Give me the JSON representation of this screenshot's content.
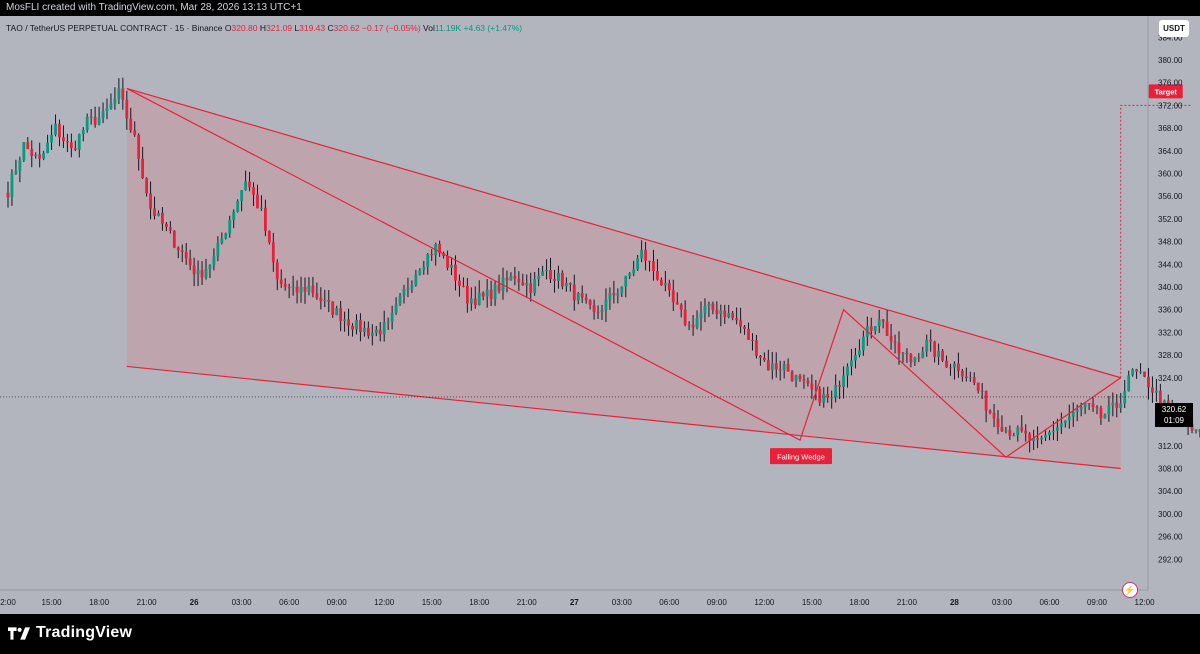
{
  "header": {
    "credit": "MosFLI created with TradingView.com, Mar 28, 2026 13:13 UTC+1"
  },
  "legend": {
    "symbol": "TAO / TetherUS PERPETUAL CONTRACT · 15 · Binance",
    "o_label": "O",
    "o": "320.80",
    "h_label": "H",
    "h": "321.09",
    "l_label": "L",
    "l": "319.43",
    "c_label": "C",
    "c": "320.62",
    "change": "−0.17 (−0.05%)",
    "vol_label": "Vol",
    "vol": "11.19K",
    "vol_change": "+4.63 (+1.47%)"
  },
  "currency_button": "USDT",
  "last_price": {
    "value": "320.62",
    "countdown": "01:09"
  },
  "brand": "TradingView",
  "chart_data": {
    "type": "candlestick",
    "instrument": "TAO / TetherUS PERPETUAL CONTRACT",
    "interval": "15",
    "exchange": "Binance",
    "ylim": [
      288,
      386
    ],
    "y_ticks": [
      "384.00",
      "380.00",
      "376.00",
      "372.00",
      "368.00",
      "364.00",
      "360.00",
      "356.00",
      "352.00",
      "348.00",
      "344.00",
      "340.00",
      "336.00",
      "332.00",
      "328.00",
      "324.00",
      "316.00",
      "312.00",
      "308.00",
      "304.00",
      "300.00",
      "296.00",
      "292.00"
    ],
    "y_tick_values": [
      384,
      380,
      376,
      372,
      368,
      364,
      360,
      356,
      352,
      348,
      344,
      340,
      336,
      332,
      328,
      324,
      316,
      312,
      308,
      304,
      300,
      296,
      292
    ],
    "x_ticks": [
      "2:00",
      "15:00",
      "18:00",
      "21:00",
      "26",
      "03:00",
      "06:00",
      "09:00",
      "12:00",
      "15:00",
      "18:00",
      "21:00",
      "27",
      "03:00",
      "06:00",
      "09:00",
      "12:00",
      "15:00",
      "18:00",
      "21:00",
      "28",
      "03:00",
      "06:00",
      "09:00",
      "12:00"
    ],
    "x_tick_index": [
      0,
      11,
      23,
      35,
      47,
      59,
      71,
      83,
      95,
      107,
      119,
      131,
      143,
      155,
      167,
      179,
      191,
      203,
      215,
      227,
      239,
      251,
      263,
      275,
      287
    ],
    "x_tick_bold": [
      false,
      false,
      false,
      false,
      true,
      false,
      false,
      false,
      false,
      false,
      false,
      false,
      true,
      false,
      false,
      false,
      false,
      false,
      false,
      false,
      true,
      false,
      false,
      false,
      false
    ],
    "close_path": [
      [
        0,
        357
      ],
      [
        4,
        365
      ],
      [
        8,
        362
      ],
      [
        12,
        368
      ],
      [
        16,
        364
      ],
      [
        20,
        369
      ],
      [
        24,
        370
      ],
      [
        28,
        374
      ],
      [
        32,
        366
      ],
      [
        36,
        354
      ],
      [
        40,
        350
      ],
      [
        44,
        346
      ],
      [
        48,
        342
      ],
      [
        52,
        345
      ],
      [
        56,
        352
      ],
      [
        60,
        359
      ],
      [
        64,
        353
      ],
      [
        68,
        341
      ],
      [
        72,
        339
      ],
      [
        76,
        340
      ],
      [
        80,
        337
      ],
      [
        84,
        335
      ],
      [
        88,
        333
      ],
      [
        92,
        332
      ],
      [
        96,
        333
      ],
      [
        100,
        339
      ],
      [
        104,
        344
      ],
      [
        108,
        347
      ],
      [
        112,
        343
      ],
      [
        116,
        338
      ],
      [
        120,
        338
      ],
      [
        124,
        340
      ],
      [
        128,
        342
      ],
      [
        132,
        340
      ],
      [
        136,
        343
      ],
      [
        140,
        341
      ],
      [
        144,
        338
      ],
      [
        148,
        335
      ],
      [
        152,
        338
      ],
      [
        156,
        341
      ],
      [
        160,
        346
      ],
      [
        164,
        342
      ],
      [
        168,
        337
      ],
      [
        172,
        333
      ],
      [
        176,
        336
      ],
      [
        180,
        336
      ],
      [
        184,
        334
      ],
      [
        188,
        330
      ],
      [
        192,
        326
      ],
      [
        196,
        326
      ],
      [
        200,
        323
      ],
      [
        204,
        321
      ],
      [
        208,
        320
      ],
      [
        212,
        327
      ],
      [
        216,
        331
      ],
      [
        220,
        335
      ],
      [
        224,
        329
      ],
      [
        228,
        327
      ],
      [
        232,
        330
      ],
      [
        236,
        327
      ],
      [
        240,
        326
      ],
      [
        244,
        323
      ],
      [
        248,
        318
      ],
      [
        252,
        315
      ],
      [
        256,
        314
      ],
      [
        260,
        312
      ],
      [
        264,
        315
      ],
      [
        268,
        317
      ],
      [
        272,
        319
      ],
      [
        276,
        317
      ],
      [
        280,
        319
      ],
      [
        284,
        325
      ],
      [
        288,
        323
      ],
      [
        292,
        319
      ],
      [
        296,
        316
      ],
      [
        300,
        314
      ],
      [
        304,
        318
      ],
      [
        308,
        320
      ]
    ],
    "price_line": 320.62,
    "annotations": {
      "pattern_label": "Falling Wedge",
      "target_label": "Target",
      "target_price": 372,
      "wedge_upper": [
        [
          30,
          375
        ],
        [
          281,
          324
        ]
      ],
      "wedge_lower": [
        [
          30,
          326
        ],
        [
          281,
          308
        ]
      ],
      "inner_lines": [
        [
          30,
          375
        ],
        [
          200,
          313
        ],
        [
          211,
          336
        ],
        [
          252,
          310
        ],
        [
          281,
          324
        ]
      ],
      "target_projection": [
        [
          281,
          324
        ],
        [
          281,
          372
        ],
        [
          299,
          372
        ]
      ]
    }
  }
}
